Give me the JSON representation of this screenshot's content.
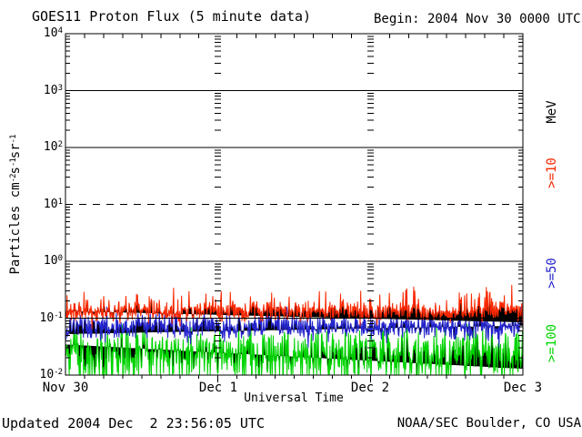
{
  "header": {
    "title": "GOES11 Proton Flux (5 minute data)",
    "begin_label": "Begin: 2004 Nov 30 0000 UTC"
  },
  "footer": {
    "updated": "Updated 2004 Dec  2 23:56:05 UTC",
    "source": "NOAA/SEC Boulder, CO USA"
  },
  "axes": {
    "x_label": "Universal Time",
    "x_ticks": [
      "Nov 30",
      "Dec 1",
      "Dec 2",
      "Dec 3"
    ],
    "y_ticks": [
      {
        "base": "10",
        "exp": "4"
      },
      {
        "base": "10",
        "exp": "3"
      },
      {
        "base": "10",
        "exp": "2"
      },
      {
        "base": "10",
        "exp": "1"
      },
      {
        "base": "10",
        "exp": "0"
      },
      {
        "base": "10",
        "exp": "-1"
      },
      {
        "base": "10",
        "exp": "-2"
      }
    ],
    "y_label_parts": {
      "t1": "Particles cm",
      "e1": "-2",
      "t2": "s",
      "e2": "-1",
      "t3": "sr",
      "e3": "-1"
    },
    "right_axis_unit": "MeV"
  },
  "chart_data": {
    "type": "line",
    "title": "GOES11 Proton Flux (5 minute data)",
    "xlabel": "Universal Time",
    "x_start": "2004 Nov 30 0000 UTC",
    "x_end": "2004 Dec 3 0000 UTC",
    "x_tick_labels": [
      "Nov 30",
      "Dec 1",
      "Dec 2",
      "Dec 3"
    ],
    "x_minor_tick_hours": 3,
    "y_scale": "log",
    "ylim": [
      0.01,
      10000
    ],
    "y_decades": [
      10000,
      1000,
      100,
      10,
      1,
      0.1,
      0.01
    ],
    "gridlines": {
      "solid_at": [
        1000,
        100,
        1,
        0.1
      ],
      "dashed_at": [
        10
      ]
    },
    "interior_day_tick_columns": [
      "Dec 1",
      "Dec 2"
    ],
    "legend_position": "right-rotated",
    "samples_per_series": 864,
    "series": [
      {
        "label": ">=10",
        "unit": "MeV",
        "color": "#f82800",
        "approx_median": 0.13,
        "approx_range": [
          0.07,
          0.42
        ],
        "levels_3h": [
          0.13,
          0.14,
          0.12,
          0.13,
          0.15,
          0.13,
          0.12,
          0.14,
          0.13,
          0.12,
          0.13,
          0.14,
          0.12,
          0.13,
          0.13,
          0.14,
          0.12,
          0.13,
          0.14,
          0.13,
          0.12,
          0.13,
          0.13,
          0.14,
          0.13
        ],
        "sd_log": 0.09,
        "spike_prob": 0.07,
        "spike_log": 0.24,
        "clip": [
          0.06,
          0.45
        ],
        "seed": 1101
      },
      {
        "label": ">=50",
        "unit": "MeV",
        "color": "#2424cc",
        "approx_median": 0.07,
        "approx_range": [
          0.035,
          0.14
        ],
        "levels_3h": [
          0.07,
          0.075,
          0.065,
          0.07,
          0.078,
          0.07,
          0.065,
          0.075,
          0.07,
          0.066,
          0.07,
          0.075,
          0.07,
          0.065,
          0.07,
          0.075,
          0.07,
          0.066,
          0.07,
          0.072,
          0.068,
          0.07,
          0.072,
          0.07,
          0.07
        ],
        "sd_log": 0.11,
        "spike_prob": 0.05,
        "spike_log": 0.16,
        "clip": [
          0.03,
          0.16
        ],
        "seed": 2205
      },
      {
        "label": ">=100",
        "unit": "MeV",
        "color": "#00d400",
        "approx_median": 0.025,
        "approx_range": [
          0.01,
          0.07
        ],
        "levels_3h": [
          0.025,
          0.027,
          0.023,
          0.026,
          0.028,
          0.024,
          0.022,
          0.026,
          0.025,
          0.023,
          0.025,
          0.027,
          0.024,
          0.023,
          0.026,
          0.027,
          0.024,
          0.023,
          0.026,
          0.025,
          0.024,
          0.025,
          0.026,
          0.025,
          0.025
        ],
        "sd_log": 0.24,
        "spike_prob": 0.12,
        "spike_log": -0.38,
        "clip": [
          0.01,
          0.08
        ],
        "seed": 3307
      }
    ]
  }
}
